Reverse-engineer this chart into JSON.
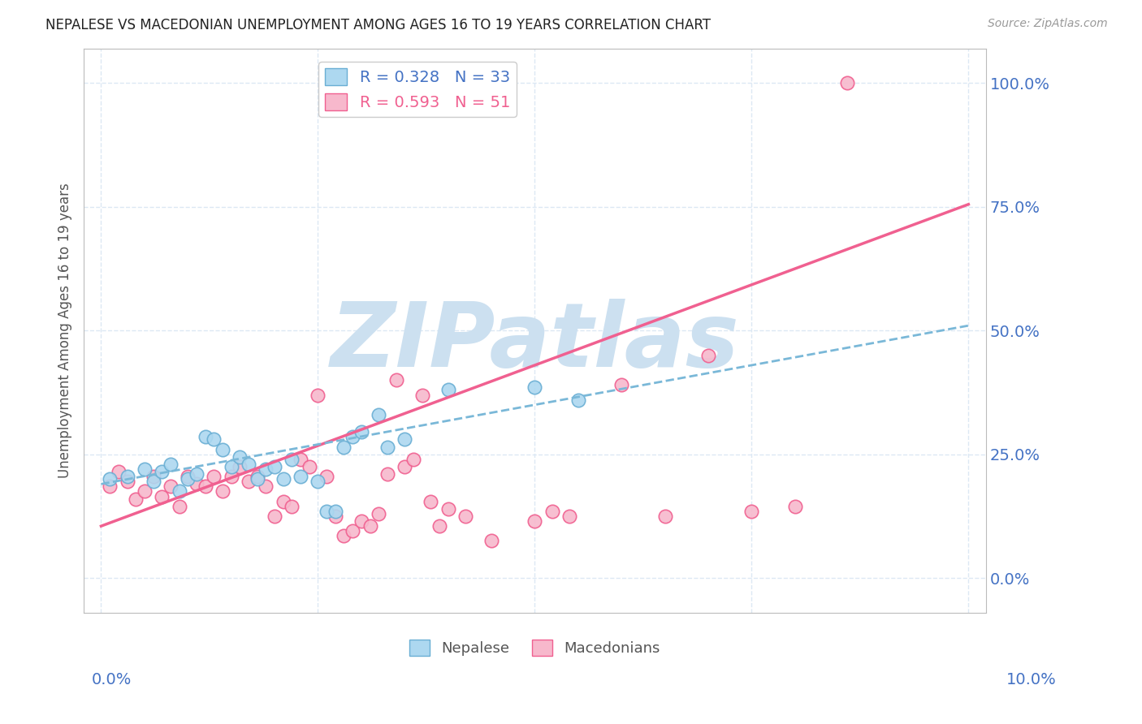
{
  "title": "NEPALESE VS MACEDONIAN UNEMPLOYMENT AMONG AGES 16 TO 19 YEARS CORRELATION CHART",
  "source": "Source: ZipAtlas.com",
  "ylabel": "Unemployment Among Ages 16 to 19 years",
  "ytick_labels": [
    "0.0%",
    "25.0%",
    "50.0%",
    "75.0%",
    "100.0%"
  ],
  "ytick_values": [
    0.0,
    0.25,
    0.5,
    0.75,
    1.0
  ],
  "xtick_values": [
    0.0,
    0.025,
    0.05,
    0.075,
    0.1
  ],
  "xlim": [
    -0.002,
    0.102
  ],
  "ylim": [
    -0.07,
    1.07
  ],
  "nepalese_color": "#add8f0",
  "macedonian_color": "#f7b8cc",
  "nepalese_edge_color": "#6aafd4",
  "macedonian_edge_color": "#f06090",
  "nepalese_line_color": "#7ab8d8",
  "macedonian_line_color": "#f06090",
  "R_nepalese": "0.328",
  "N_nepalese": "33",
  "R_macedonian": "0.593",
  "N_macedonian": "51",
  "watermark": "ZIPatlas",
  "watermark_color": "#cce0f0",
  "grid_color": "#dce8f4",
  "title_color": "#222222",
  "axis_label_color": "#4472c4",
  "nepalese_scatter": [
    [
      0.001,
      0.2
    ],
    [
      0.003,
      0.205
    ],
    [
      0.005,
      0.22
    ],
    [
      0.006,
      0.195
    ],
    [
      0.007,
      0.215
    ],
    [
      0.008,
      0.23
    ],
    [
      0.009,
      0.175
    ],
    [
      0.01,
      0.2
    ],
    [
      0.011,
      0.21
    ],
    [
      0.012,
      0.285
    ],
    [
      0.013,
      0.28
    ],
    [
      0.014,
      0.26
    ],
    [
      0.015,
      0.225
    ],
    [
      0.016,
      0.245
    ],
    [
      0.017,
      0.23
    ],
    [
      0.018,
      0.2
    ],
    [
      0.019,
      0.22
    ],
    [
      0.02,
      0.225
    ],
    [
      0.021,
      0.2
    ],
    [
      0.022,
      0.24
    ],
    [
      0.023,
      0.205
    ],
    [
      0.025,
      0.195
    ],
    [
      0.026,
      0.135
    ],
    [
      0.027,
      0.135
    ],
    [
      0.028,
      0.265
    ],
    [
      0.029,
      0.285
    ],
    [
      0.03,
      0.295
    ],
    [
      0.032,
      0.33
    ],
    [
      0.033,
      0.265
    ],
    [
      0.035,
      0.28
    ],
    [
      0.04,
      0.38
    ],
    [
      0.05,
      0.385
    ],
    [
      0.055,
      0.36
    ]
  ],
  "macedonian_scatter": [
    [
      0.001,
      0.185
    ],
    [
      0.002,
      0.215
    ],
    [
      0.003,
      0.195
    ],
    [
      0.004,
      0.16
    ],
    [
      0.005,
      0.175
    ],
    [
      0.006,
      0.205
    ],
    [
      0.007,
      0.165
    ],
    [
      0.008,
      0.185
    ],
    [
      0.009,
      0.145
    ],
    [
      0.01,
      0.205
    ],
    [
      0.011,
      0.19
    ],
    [
      0.012,
      0.185
    ],
    [
      0.013,
      0.205
    ],
    [
      0.014,
      0.175
    ],
    [
      0.015,
      0.205
    ],
    [
      0.016,
      0.225
    ],
    [
      0.017,
      0.195
    ],
    [
      0.018,
      0.205
    ],
    [
      0.019,
      0.185
    ],
    [
      0.02,
      0.125
    ],
    [
      0.021,
      0.155
    ],
    [
      0.022,
      0.145
    ],
    [
      0.023,
      0.24
    ],
    [
      0.024,
      0.225
    ],
    [
      0.025,
      0.37
    ],
    [
      0.026,
      0.205
    ],
    [
      0.027,
      0.125
    ],
    [
      0.028,
      0.085
    ],
    [
      0.029,
      0.095
    ],
    [
      0.03,
      0.115
    ],
    [
      0.031,
      0.105
    ],
    [
      0.032,
      0.13
    ],
    [
      0.033,
      0.21
    ],
    [
      0.034,
      0.4
    ],
    [
      0.035,
      0.225
    ],
    [
      0.036,
      0.24
    ],
    [
      0.037,
      0.37
    ],
    [
      0.038,
      0.155
    ],
    [
      0.039,
      0.105
    ],
    [
      0.04,
      0.14
    ],
    [
      0.042,
      0.125
    ],
    [
      0.045,
      0.075
    ],
    [
      0.05,
      0.115
    ],
    [
      0.052,
      0.135
    ],
    [
      0.054,
      0.125
    ],
    [
      0.06,
      0.39
    ],
    [
      0.065,
      0.125
    ],
    [
      0.07,
      0.45
    ],
    [
      0.075,
      0.135
    ],
    [
      0.08,
      0.145
    ],
    [
      0.086,
      1.0
    ]
  ],
  "nepalese_line_x": [
    0.0,
    0.1
  ],
  "nepalese_line_y": [
    0.19,
    0.51
  ],
  "macedonian_line_x": [
    0.0,
    0.1
  ],
  "macedonian_line_y": [
    0.105,
    0.755
  ]
}
